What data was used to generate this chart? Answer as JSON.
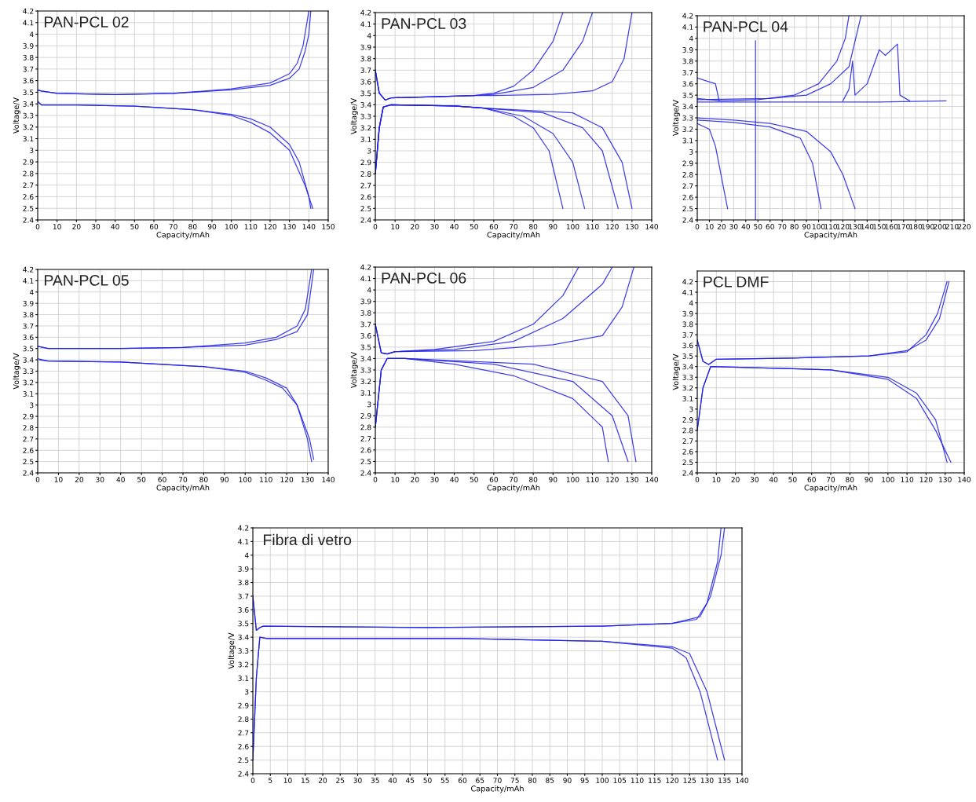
{
  "chart_data": [
    {
      "type": "line",
      "title": "PAN-PCL 02",
      "xlabel": "Capacity/mAh",
      "ylabel": "Voltage/V",
      "grid": true,
      "xlim": [
        0,
        150
      ],
      "ylim": [
        2.4,
        4.2
      ],
      "xticks": [
        0,
        10,
        20,
        30,
        40,
        50,
        60,
        70,
        80,
        90,
        100,
        110,
        120,
        130,
        140,
        150
      ],
      "yticks": [
        2.4,
        2.5,
        2.6,
        2.7,
        2.8,
        2.9,
        3,
        3.1,
        3.2,
        3.3,
        3.4,
        3.5,
        3.6,
        3.7,
        3.8,
        3.9,
        4,
        4.1,
        4.2
      ],
      "series": [
        {
          "color": "#1f1fe6",
          "x": [
            0,
            2,
            10,
            40,
            70,
            100,
            120,
            130,
            135,
            138,
            140,
            141
          ],
          "values": [
            3.52,
            3.51,
            3.49,
            3.48,
            3.49,
            3.52,
            3.56,
            3.62,
            3.7,
            3.85,
            4.0,
            4.2
          ]
        },
        {
          "color": "#1f1fe6",
          "x": [
            0,
            2,
            10,
            40,
            70,
            100,
            120,
            130,
            134,
            137,
            140
          ],
          "values": [
            3.52,
            3.51,
            3.49,
            3.48,
            3.49,
            3.53,
            3.58,
            3.66,
            3.75,
            3.9,
            4.2
          ]
        },
        {
          "color": "#1f1fe6",
          "x": [
            0,
            2,
            20,
            50,
            80,
            100,
            110,
            120,
            130,
            135,
            140,
            141
          ],
          "values": [
            3.42,
            3.39,
            3.39,
            3.38,
            3.35,
            3.31,
            3.27,
            3.2,
            3.05,
            2.9,
            2.6,
            2.5
          ]
        },
        {
          "color": "#1f1fe6",
          "x": [
            0,
            2,
            20,
            50,
            80,
            100,
            110,
            120,
            130,
            138,
            142
          ],
          "values": [
            3.42,
            3.39,
            3.39,
            3.38,
            3.35,
            3.3,
            3.24,
            3.15,
            3.0,
            2.7,
            2.5
          ]
        }
      ]
    },
    {
      "type": "line",
      "title": "PAN-PCL 03",
      "xlabel": "Capacity/mAh",
      "ylabel": "Voltage/V",
      "grid": true,
      "xlim": [
        0,
        140
      ],
      "ylim": [
        2.4,
        4.2
      ],
      "xticks": [
        0,
        10,
        20,
        30,
        40,
        50,
        60,
        70,
        80,
        90,
        100,
        110,
        120,
        130,
        140
      ],
      "yticks": [
        2.4,
        2.5,
        2.6,
        2.7,
        2.8,
        2.9,
        3,
        3.1,
        3.2,
        3.3,
        3.4,
        3.5,
        3.6,
        3.7,
        3.8,
        3.9,
        4,
        4.1,
        4.2
      ],
      "series": [
        {
          "color": "#1f1fe6",
          "x": [
            0,
            2,
            5,
            8,
            30,
            50,
            60,
            70,
            80,
            90,
            95
          ],
          "values": [
            3.7,
            3.5,
            3.44,
            3.46,
            3.47,
            3.48,
            3.5,
            3.56,
            3.7,
            3.95,
            4.2
          ]
        },
        {
          "color": "#1f1fe6",
          "x": [
            0,
            2,
            5,
            8,
            30,
            50,
            60,
            80,
            95,
            105,
            110
          ],
          "values": [
            3.7,
            3.5,
            3.44,
            3.46,
            3.47,
            3.48,
            3.49,
            3.55,
            3.7,
            3.95,
            4.2
          ]
        },
        {
          "color": "#1f1fe6",
          "x": [
            0,
            2,
            5,
            8,
            30,
            50,
            60,
            90,
            110,
            120,
            126,
            130
          ],
          "values": [
            3.7,
            3.5,
            3.44,
            3.46,
            3.47,
            3.48,
            3.48,
            3.49,
            3.52,
            3.6,
            3.8,
            4.2
          ]
        },
        {
          "color": "#1f1fe6",
          "x": [
            0,
            2,
            4,
            8,
            40,
            55,
            70,
            80,
            88,
            95
          ],
          "values": [
            2.8,
            3.2,
            3.38,
            3.4,
            3.39,
            3.37,
            3.3,
            3.2,
            3.0,
            2.5
          ]
        },
        {
          "color": "#1f1fe6",
          "x": [
            0,
            2,
            4,
            8,
            40,
            55,
            75,
            90,
            100,
            106
          ],
          "values": [
            2.8,
            3.2,
            3.38,
            3.4,
            3.39,
            3.37,
            3.3,
            3.15,
            2.9,
            2.5
          ]
        },
        {
          "color": "#1f1fe6",
          "x": [
            0,
            2,
            4,
            8,
            40,
            55,
            85,
            105,
            115,
            123
          ],
          "values": [
            2.8,
            3.2,
            3.38,
            3.4,
            3.39,
            3.37,
            3.33,
            3.2,
            3.0,
            2.5
          ]
        },
        {
          "color": "#1f1fe6",
          "x": [
            0,
            2,
            4,
            8,
            40,
            55,
            100,
            115,
            125,
            130
          ],
          "values": [
            2.8,
            3.2,
            3.38,
            3.4,
            3.39,
            3.37,
            3.33,
            3.2,
            2.9,
            2.5
          ]
        }
      ]
    },
    {
      "type": "line",
      "title": "PAN-PCL 04",
      "xlabel": "Capacity/mAh",
      "ylabel": "Voltage/V",
      "grid": true,
      "xlim": [
        0,
        220
      ],
      "ylim": [
        2.4,
        4.2
      ],
      "xticks": [
        0,
        10,
        20,
        30,
        40,
        50,
        60,
        70,
        80,
        90,
        100,
        110,
        120,
        130,
        140,
        150,
        160,
        170,
        180,
        190,
        200,
        210,
        220
      ],
      "yticks": [
        2.4,
        2.5,
        2.6,
        2.7,
        2.8,
        2.9,
        3,
        3.1,
        3.2,
        3.3,
        3.4,
        3.5,
        3.6,
        3.7,
        3.8,
        3.9,
        4,
        4.1,
        4.2
      ],
      "series": [
        {
          "color": "#1f1fe6",
          "x": [
            0,
            20,
            50,
            80,
            100,
            115,
            122,
            125
          ],
          "values": [
            3.47,
            3.45,
            3.46,
            3.5,
            3.6,
            3.8,
            4.0,
            4.2
          ]
        },
        {
          "color": "#1f1fe6",
          "x": [
            0,
            60,
            90,
            110,
            125,
            135
          ],
          "values": [
            3.46,
            3.47,
            3.5,
            3.6,
            3.75,
            4.2
          ]
        },
        {
          "color": "#1f1fe6",
          "x": [
            0,
            100,
            150,
            205
          ],
          "values": [
            3.44,
            3.44,
            3.44,
            3.45
          ]
        },
        {
          "color": "#1f1fe6",
          "x": [
            120,
            125,
            128,
            130,
            140,
            150,
            155,
            165,
            167,
            175
          ],
          "values": [
            3.45,
            3.55,
            3.8,
            3.5,
            3.6,
            3.9,
            3.85,
            3.95,
            3.5,
            3.45
          ]
        },
        {
          "color": "#1f1fe6",
          "x": [
            0,
            15,
            18
          ],
          "values": [
            3.65,
            3.6,
            3.45
          ]
        },
        {
          "color": "#1f1fe6",
          "x": [
            48,
            48
          ],
          "values": [
            3.98,
            2.4
          ]
        },
        {
          "color": "#1f1fe6",
          "x": [
            0,
            30,
            60,
            90,
            110,
            120,
            130
          ],
          "values": [
            3.3,
            3.28,
            3.25,
            3.18,
            3.0,
            2.8,
            2.5
          ]
        },
        {
          "color": "#1f1fe6",
          "x": [
            0,
            30,
            60,
            85,
            95,
            102
          ],
          "values": [
            3.28,
            3.26,
            3.22,
            3.12,
            2.9,
            2.5
          ]
        },
        {
          "color": "#1f1fe6",
          "x": [
            0,
            10,
            15,
            25
          ],
          "values": [
            3.25,
            3.2,
            3.05,
            2.5
          ]
        }
      ]
    },
    {
      "type": "line",
      "title": "PAN-PCL 05",
      "xlabel": "Capacity/mAh",
      "ylabel": "Voltage/V",
      "grid": true,
      "xlim": [
        0,
        140
      ],
      "ylim": [
        2.4,
        4.2
      ],
      "xticks": [
        0,
        10,
        20,
        30,
        40,
        50,
        60,
        70,
        80,
        90,
        100,
        110,
        120,
        130,
        140
      ],
      "yticks": [
        2.4,
        2.5,
        2.6,
        2.7,
        2.8,
        2.9,
        3,
        3.1,
        3.2,
        3.3,
        3.4,
        3.5,
        3.6,
        3.7,
        3.8,
        3.9,
        4,
        4.1,
        4.2
      ],
      "series": [
        {
          "color": "#1f1fe6",
          "x": [
            0,
            5,
            40,
            70,
            100,
            115,
            125,
            129,
            132
          ],
          "values": [
            3.52,
            3.5,
            3.5,
            3.51,
            3.55,
            3.6,
            3.7,
            3.85,
            4.2
          ]
        },
        {
          "color": "#1f1fe6",
          "x": [
            0,
            5,
            40,
            70,
            100,
            115,
            125,
            130,
            133
          ],
          "values": [
            3.52,
            3.5,
            3.5,
            3.51,
            3.53,
            3.58,
            3.65,
            3.8,
            4.2
          ]
        },
        {
          "color": "#1f1fe6",
          "x": [
            0,
            5,
            40,
            80,
            100,
            110,
            120,
            125,
            130,
            132
          ],
          "values": [
            3.41,
            3.39,
            3.38,
            3.34,
            3.3,
            3.24,
            3.15,
            3.0,
            2.7,
            2.5
          ]
        },
        {
          "color": "#1f1fe6",
          "x": [
            1,
            5,
            40,
            80,
            100,
            110,
            118,
            125,
            131,
            133
          ],
          "values": [
            3.4,
            3.39,
            3.38,
            3.34,
            3.29,
            3.22,
            3.15,
            3.0,
            2.7,
            2.52
          ]
        }
      ]
    },
    {
      "type": "line",
      "title": "PAN-PCL 06",
      "xlabel": "Capacity/mAh",
      "ylabel": "Voltage/V",
      "grid": true,
      "xlim": [
        0,
        140
      ],
      "ylim": [
        2.4,
        4.2
      ],
      "xticks": [
        0,
        10,
        20,
        30,
        40,
        50,
        60,
        70,
        80,
        90,
        100,
        110,
        120,
        130,
        140
      ],
      "yticks": [
        2.4,
        2.5,
        2.6,
        2.7,
        2.8,
        2.9,
        3,
        3.1,
        3.2,
        3.3,
        3.4,
        3.5,
        3.6,
        3.7,
        3.8,
        3.9,
        4,
        4.1,
        4.2
      ],
      "series": [
        {
          "color": "#1f1fe6",
          "x": [
            0,
            3,
            6,
            10,
            30,
            60,
            80,
            95,
            103
          ],
          "values": [
            3.7,
            3.45,
            3.44,
            3.46,
            3.48,
            3.55,
            3.7,
            3.95,
            4.2
          ]
        },
        {
          "color": "#1f1fe6",
          "x": [
            0,
            3,
            6,
            10,
            40,
            70,
            95,
            115,
            120
          ],
          "values": [
            3.7,
            3.45,
            3.44,
            3.46,
            3.48,
            3.55,
            3.75,
            4.05,
            4.2
          ]
        },
        {
          "color": "#1f1fe6",
          "x": [
            0,
            3,
            6,
            10,
            50,
            90,
            115,
            125,
            131
          ],
          "values": [
            3.7,
            3.45,
            3.44,
            3.46,
            3.47,
            3.52,
            3.6,
            3.85,
            4.2
          ]
        },
        {
          "color": "#1f1fe6",
          "x": [
            0,
            3,
            6,
            15,
            40,
            70,
            100,
            115,
            118
          ],
          "values": [
            2.8,
            3.3,
            3.4,
            3.4,
            3.35,
            3.25,
            3.05,
            2.8,
            2.5
          ]
        },
        {
          "color": "#1f1fe6",
          "x": [
            0,
            3,
            6,
            15,
            60,
            100,
            120,
            128
          ],
          "values": [
            2.8,
            3.3,
            3.4,
            3.4,
            3.35,
            3.2,
            2.9,
            2.5
          ]
        },
        {
          "color": "#1f1fe6",
          "x": [
            0,
            3,
            6,
            15,
            80,
            115,
            128,
            132
          ],
          "values": [
            2.8,
            3.3,
            3.4,
            3.4,
            3.35,
            3.2,
            2.9,
            2.5
          ]
        }
      ]
    },
    {
      "type": "line",
      "title": "PCL DMF",
      "xlabel": "Capacity/mAh",
      "ylabel": "Voltage/V",
      "grid": true,
      "xlim": [
        0,
        140
      ],
      "ylim": [
        2.4,
        4.3
      ],
      "xticks": [
        0,
        10,
        20,
        30,
        40,
        50,
        60,
        70,
        80,
        90,
        100,
        110,
        120,
        130,
        140
      ],
      "yticks": [
        2.4,
        2.5,
        2.6,
        2.7,
        2.8,
        2.9,
        3,
        3.1,
        3.2,
        3.3,
        3.4,
        3.5,
        3.6,
        3.7,
        3.8,
        3.9,
        4,
        4.1,
        4.2
      ],
      "series": [
        {
          "color": "#1f1fe6",
          "x": [
            0,
            3,
            6,
            10,
            50,
            90,
            110,
            120,
            127,
            132
          ],
          "values": [
            3.65,
            3.45,
            3.42,
            3.47,
            3.48,
            3.5,
            3.55,
            3.65,
            3.85,
            4.2
          ]
        },
        {
          "color": "#1f1fe6",
          "x": [
            0,
            3,
            6,
            10,
            50,
            90,
            110,
            120,
            126,
            131
          ],
          "values": [
            3.65,
            3.45,
            3.42,
            3.47,
            3.48,
            3.5,
            3.54,
            3.7,
            3.9,
            4.2
          ]
        },
        {
          "color": "#1f1fe6",
          "x": [
            0,
            3,
            7,
            30,
            70,
            100,
            115,
            125,
            131
          ],
          "values": [
            2.8,
            3.2,
            3.4,
            3.39,
            3.37,
            3.3,
            3.15,
            2.9,
            2.5
          ]
        },
        {
          "color": "#1f1fe6",
          "x": [
            0,
            3,
            7,
            30,
            70,
            100,
            115,
            125,
            133
          ],
          "values": [
            2.8,
            3.2,
            3.4,
            3.39,
            3.37,
            3.28,
            3.1,
            2.8,
            2.5
          ]
        }
      ]
    },
    {
      "type": "line",
      "title": "Fibra di vetro",
      "xlabel": "Capacity/mAh",
      "ylabel": "Voltage/V",
      "grid": true,
      "xlim": [
        0,
        140
      ],
      "ylim": [
        2.4,
        4.2
      ],
      "xticks": [
        0,
        5,
        10,
        15,
        20,
        25,
        30,
        35,
        40,
        45,
        50,
        55,
        60,
        65,
        70,
        75,
        80,
        85,
        90,
        95,
        100,
        105,
        110,
        115,
        120,
        125,
        130,
        135,
        140
      ],
      "yticks": [
        2.4,
        2.5,
        2.6,
        2.7,
        2.8,
        2.9,
        3,
        3.1,
        3.2,
        3.3,
        3.4,
        3.5,
        3.6,
        3.7,
        3.8,
        3.9,
        4,
        4.1,
        4.2
      ],
      "series": [
        {
          "color": "#1f1fe6",
          "x": [
            0,
            1,
            2,
            3,
            50,
            100,
            120,
            128,
            131,
            134,
            135
          ],
          "values": [
            3.7,
            3.45,
            3.47,
            3.48,
            3.47,
            3.48,
            3.5,
            3.55,
            3.7,
            4.0,
            4.2
          ]
        },
        {
          "color": "#1f1fe6",
          "x": [
            0,
            1,
            2,
            3,
            50,
            100,
            120,
            127,
            130,
            133,
            134
          ],
          "values": [
            3.7,
            3.45,
            3.47,
            3.48,
            3.47,
            3.48,
            3.5,
            3.53,
            3.65,
            3.95,
            4.2
          ]
        },
        {
          "color": "#1f1fe6",
          "x": [
            0,
            1,
            2,
            4,
            60,
            100,
            120,
            125,
            130,
            134,
            135
          ],
          "values": [
            2.5,
            3.1,
            3.4,
            3.39,
            3.39,
            3.37,
            3.33,
            3.28,
            3.0,
            2.6,
            2.5
          ]
        },
        {
          "color": "#1f1fe6",
          "x": [
            0,
            1,
            2,
            4,
            60,
            100,
            120,
            124,
            128,
            133
          ],
          "values": [
            2.5,
            3.1,
            3.4,
            3.39,
            3.39,
            3.37,
            3.32,
            3.25,
            3.0,
            2.5
          ]
        }
      ]
    }
  ]
}
